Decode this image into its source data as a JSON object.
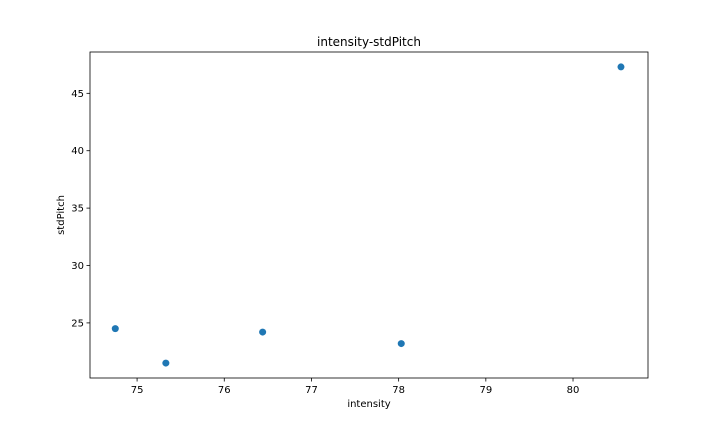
{
  "chart_data": {
    "type": "scatter",
    "title": "intensity-stdPitch",
    "xlabel": "intensity",
    "ylabel": "stdPitch",
    "xlim": [
      74.46,
      80.86
    ],
    "ylim": [
      20.2,
      48.6
    ],
    "xticks": [
      75,
      76,
      77,
      78,
      79,
      80
    ],
    "yticks": [
      25,
      30,
      35,
      40,
      45
    ],
    "grid": false,
    "points": [
      {
        "x": 74.75,
        "y": 24.5
      },
      {
        "x": 75.33,
        "y": 21.5
      },
      {
        "x": 76.44,
        "y": 24.2
      },
      {
        "x": 78.03,
        "y": 23.2
      },
      {
        "x": 80.55,
        "y": 47.3
      }
    ],
    "marker_color": "#1f77b4"
  }
}
